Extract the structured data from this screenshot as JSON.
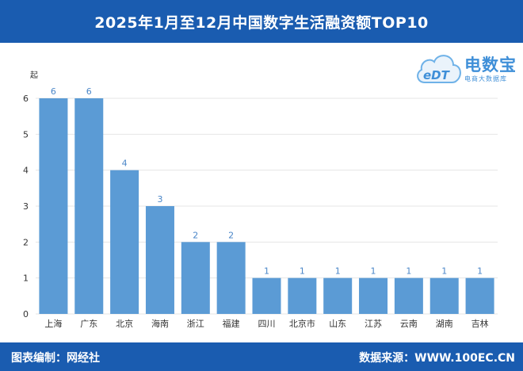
{
  "header": {
    "title": "2025年1月至12月中国数字生活融资额TOP10"
  },
  "footer": {
    "left": "图表编制：网经社",
    "right": "数据来源：WWW.100EC.CN"
  },
  "logo": {
    "brand": "电数宝",
    "subtitle": "电商大数据库",
    "mark": "eDT"
  },
  "colors": {
    "bar": "#5b9bd5",
    "label": "#4a86c8",
    "header_bg": "#1a5cb0",
    "grid": "#e6e6e6"
  },
  "chart_data": {
    "type": "bar",
    "categories": [
      "上海",
      "广东",
      "北京",
      "海南",
      "浙江",
      "福建",
      "四川",
      "北京市",
      "山东",
      "江苏",
      "云南",
      "湖南",
      "吉林"
    ],
    "values": [
      6,
      6,
      4,
      3,
      2,
      2,
      1,
      1,
      1,
      1,
      1,
      1,
      1
    ],
    "ylabel": "起",
    "ylim": [
      0,
      6
    ],
    "yticks": [
      0,
      1,
      2,
      3,
      4,
      5,
      6
    ],
    "grid": true,
    "data_labels": true
  }
}
